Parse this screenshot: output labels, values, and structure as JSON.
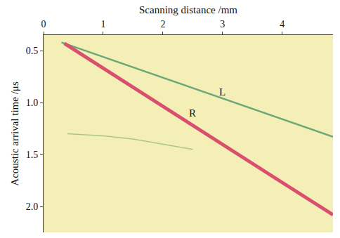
{
  "chart_data": {
    "type": "line",
    "x_label": "Scanning distance /mm",
    "y_label": "Acoustic arrival time /μs",
    "xlim": [
      0,
      4.85
    ],
    "xticks": [
      0,
      1,
      2,
      3,
      4
    ],
    "ylim": [
      2.25,
      0.35
    ],
    "yticks": [
      0.5,
      {
        "value": 1,
        "label": "1.0"
      },
      1.5,
      {
        "value": 2,
        "label": "2.0"
      }
    ],
    "grid": false,
    "series": [
      {
        "color": "#6aa878",
        "x": [
          0.3,
          1,
          2,
          3,
          4,
          4.85
        ],
        "values": [
          0.42,
          0.56,
          0.76,
          0.96,
          1.16,
          1.33
        ]
      },
      {
        "color": "#d9506e",
        "x": [
          0.35,
          1,
          2,
          3,
          4,
          4.85
        ],
        "values": [
          0.43,
          0.67,
          1.04,
          1.4,
          1.77,
          2.08
        ]
      },
      {
        "color": "#a9c88a",
        "x": [
          0.4,
          1,
          1.5,
          2.5
        ],
        "values": [
          1.3,
          1.32,
          1.35,
          1.45
        ]
      }
    ],
    "annotations": [
      {
        "text": "L",
        "x": 3.0,
        "y": 0.9
      },
      {
        "text": "R",
        "x": 2.5,
        "y": 1.1
      }
    ]
  }
}
